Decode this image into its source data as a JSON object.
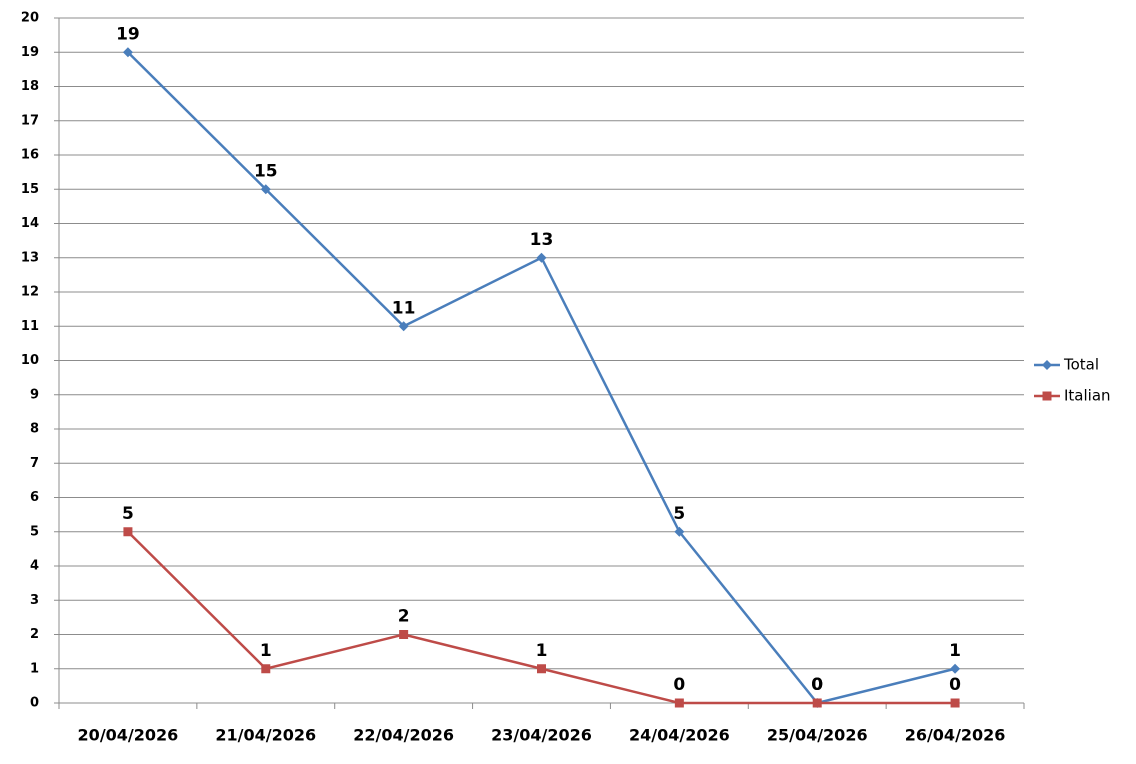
{
  "chart_data": {
    "type": "line",
    "categories": [
      "20/04/2026",
      "21/04/2026",
      "22/04/2026",
      "23/04/2026",
      "24/04/2026",
      "25/04/2026",
      "26/04/2026"
    ],
    "series": [
      {
        "name": "Total",
        "color": "#4a7ebb",
        "marker": "diamond",
        "values": [
          19,
          15,
          11,
          13,
          5,
          0,
          1
        ]
      },
      {
        "name": "Italian",
        "color": "#be4b48",
        "marker": "square",
        "values": [
          5,
          1,
          2,
          1,
          0,
          0,
          0
        ]
      }
    ],
    "ylim": [
      0,
      20
    ],
    "yticks": [
      0,
      1,
      2,
      3,
      4,
      5,
      6,
      7,
      8,
      9,
      10,
      11,
      12,
      13,
      14,
      15,
      16,
      17,
      18,
      19,
      20
    ],
    "grid": true,
    "data_labels": true,
    "legend": "right"
  }
}
